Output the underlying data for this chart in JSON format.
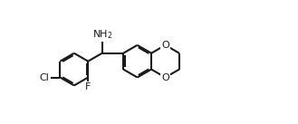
{
  "bg_color": "#ffffff",
  "bond_color": "#1a1a1a",
  "atom_color": "#1a1a1a",
  "line_width": 1.5,
  "figsize": [
    3.29,
    1.37
  ],
  "dpi": 100,
  "R": 0.55,
  "xlim": [
    -0.3,
    9.8
  ],
  "ylim": [
    -1.0,
    2.1
  ]
}
